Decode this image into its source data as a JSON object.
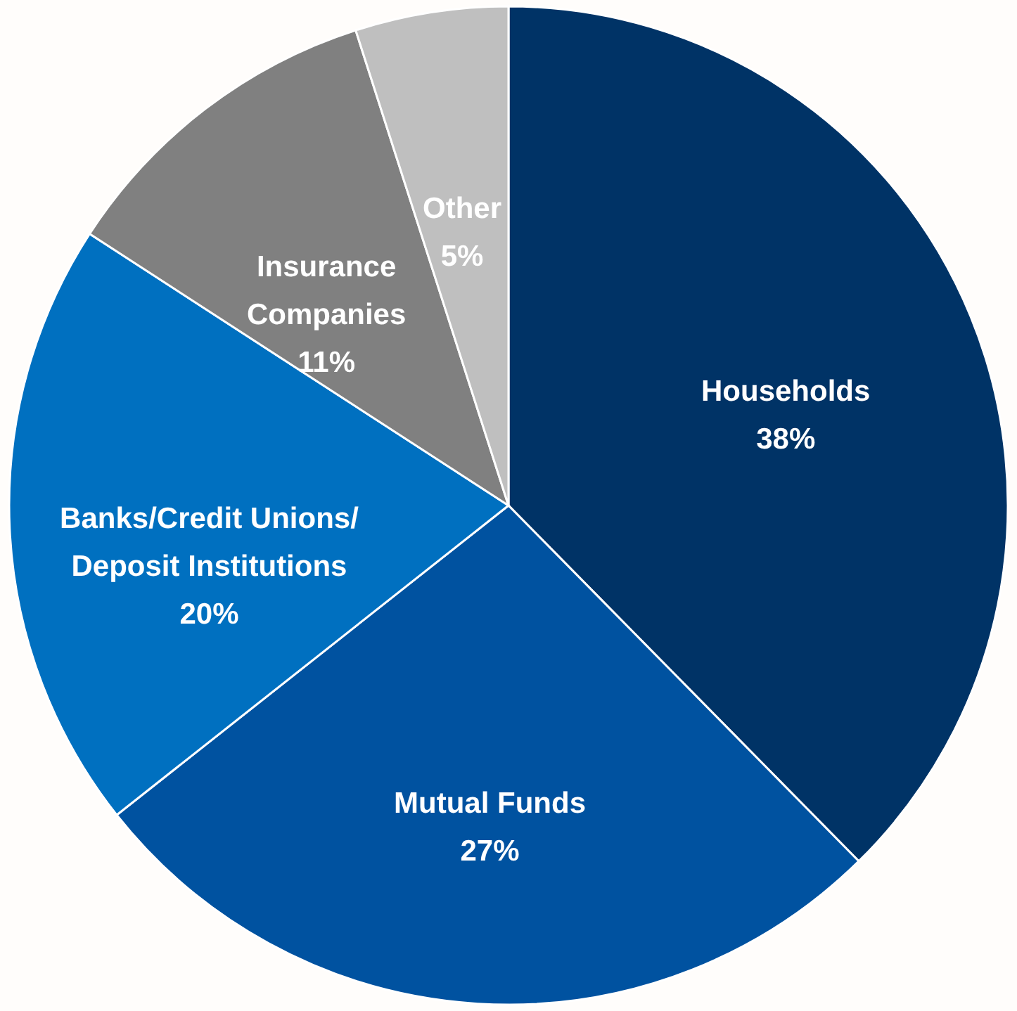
{
  "chart_data": {
    "type": "pie",
    "categories": [
      "Households",
      "Mutual Funds",
      "Banks/Credit Unions/\nDeposit Institutions",
      "Insurance\nCompanies",
      "Other"
    ],
    "values": [
      38,
      27,
      20,
      11,
      5
    ],
    "value_labels": [
      "38%",
      "27%",
      "20%",
      "11%",
      "5%"
    ],
    "colors": [
      "#003366",
      "#0052a0",
      "#0070c0",
      "#808080",
      "#bfbfbf"
    ]
  }
}
